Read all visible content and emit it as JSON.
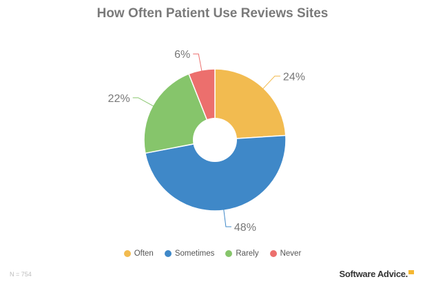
{
  "chart_data": {
    "type": "pie",
    "variant": "donut",
    "title": "How Often Patient Use Reviews Sites",
    "categories": [
      "Often",
      "Sometimes",
      "Rarely",
      "Never"
    ],
    "values": [
      24,
      48,
      22,
      6
    ],
    "labels": [
      "24%",
      "48%",
      "22%",
      "6%"
    ],
    "colors": [
      "#f2bb50",
      "#3f88c8",
      "#86c56b",
      "#ec6f6d"
    ],
    "legend_position": "bottom",
    "start_angle": "top, clockwise"
  },
  "footer": {
    "note": "N = 754",
    "brand": "Software Advice."
  }
}
